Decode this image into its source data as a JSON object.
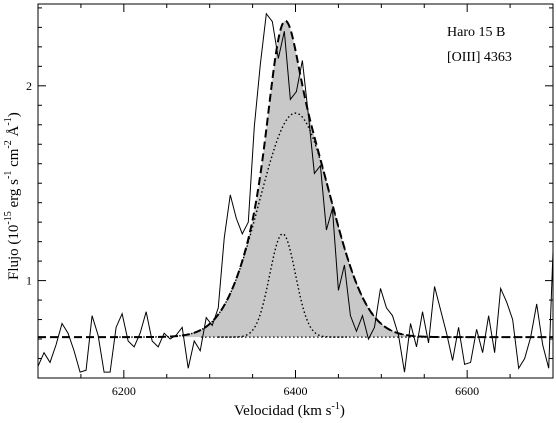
{
  "chart_data": {
    "type": "line",
    "annotation": {
      "object": "Haro 15 B",
      "line": "[OIII] 4363"
    },
    "xlabel": {
      "main": "Velocidad (km s",
      "sup": "-1",
      "close": ")"
    },
    "ylabel": {
      "prefix": "Flujo (10",
      "exp1": "-15",
      "erg": " erg s",
      "exp2": "-1",
      "cm": " cm",
      "exp3": "-2",
      "ang": " Å",
      "exp4": "-1",
      "close": ")"
    },
    "xlim": [
      6100,
      6700
    ],
    "ylim": [
      0.5,
      2.42
    ],
    "xticks": [
      6200,
      6400,
      6600
    ],
    "xtick_labels": [
      "6200",
      "6400",
      "6600"
    ],
    "yticks": [
      1,
      2
    ],
    "ytick_labels": [
      "1",
      "2"
    ],
    "continuum": 0.71,
    "components": [
      {
        "style": "dotted",
        "amplitude": 0.53,
        "center": 6385,
        "sigma": 15
      },
      {
        "style": "dotted",
        "amplitude": 1.15,
        "center": 6400,
        "sigma": 42
      }
    ],
    "total_fit_style": "dashed",
    "fill_color": "#c8c8c8",
    "series": [
      {
        "style": "solid",
        "x": [
          6100,
          6107,
          6114,
          6121,
          6128,
          6135,
          6142,
          6149,
          6156,
          6163,
          6170,
          6177,
          6184,
          6191,
          6198,
          6205,
          6212,
          6219,
          6226,
          6233,
          6240,
          6247,
          6254,
          6261,
          6268,
          6275,
          6282,
          6289,
          6296,
          6303,
          6310,
          6317,
          6324,
          6331,
          6338,
          6345,
          6352,
          6359,
          6366,
          6373,
          6380,
          6387,
          6394,
          6401,
          6408,
          6415,
          6422,
          6429,
          6436,
          6443,
          6450,
          6457,
          6464,
          6471,
          6478,
          6485,
          6492,
          6499,
          6506,
          6513,
          6520,
          6527,
          6534,
          6541,
          6548,
          6555,
          6562,
          6569,
          6576,
          6583,
          6590,
          6597,
          6604,
          6611,
          6618,
          6625,
          6632,
          6639,
          6646,
          6653,
          6660,
          6667,
          6674,
          6681,
          6688,
          6695,
          6700
        ],
        "y": [
          0.56,
          0.63,
          0.58,
          0.67,
          0.78,
          0.73,
          0.64,
          0.53,
          0.54,
          0.82,
          0.72,
          0.53,
          0.53,
          0.76,
          0.83,
          0.69,
          0.66,
          0.73,
          0.84,
          0.69,
          0.66,
          0.73,
          0.7,
          0.72,
          0.76,
          0.55,
          0.69,
          0.64,
          0.81,
          0.77,
          0.86,
          1.22,
          1.44,
          1.32,
          1.24,
          1.3,
          1.79,
          2.11,
          2.37,
          2.33,
          2.14,
          2.28,
          1.93,
          1.97,
          2.13,
          1.85,
          1.55,
          1.59,
          1.26,
          1.37,
          0.95,
          1.08,
          0.82,
          0.74,
          0.82,
          0.7,
          0.76,
          0.96,
          0.86,
          0.82,
          0.72,
          0.53,
          0.78,
          0.66,
          0.84,
          0.68,
          0.97,
          0.85,
          0.73,
          0.59,
          0.76,
          0.57,
          0.58,
          0.75,
          0.63,
          0.82,
          0.63,
          0.96,
          0.89,
          0.8,
          0.55,
          0.6,
          0.71,
          0.88,
          0.67,
          0.55,
          1.15
        ]
      }
    ]
  }
}
